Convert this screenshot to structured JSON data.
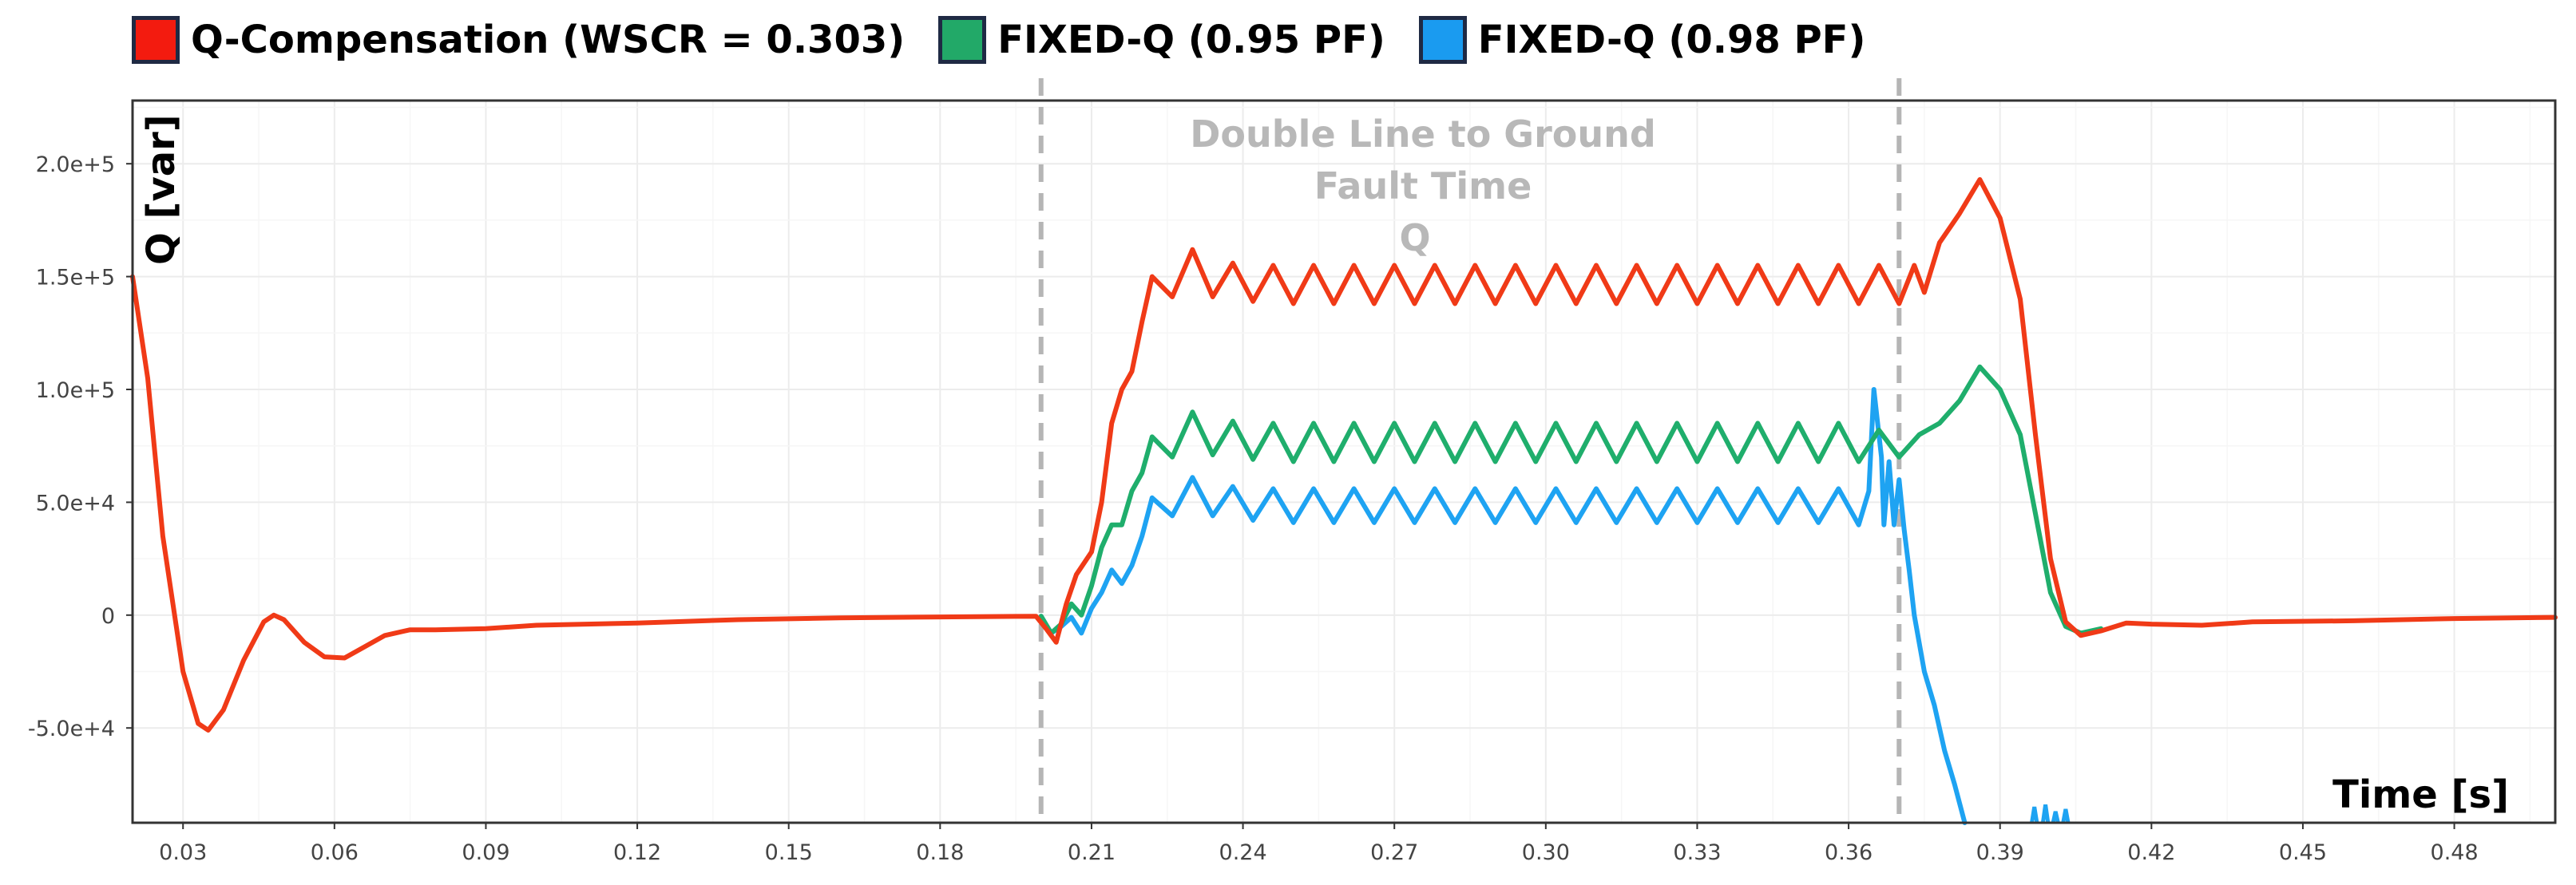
{
  "chart_data": {
    "type": "line",
    "title": "",
    "xlabel": "Time [s]",
    "ylabel": "Q [var]",
    "xlim": [
      0.02,
      0.5
    ],
    "ylim": [
      -92000,
      228000
    ],
    "grid": true,
    "legend_position": "top-left",
    "x_ticks": [
      0.03,
      0.06,
      0.09,
      0.12,
      0.15,
      0.18,
      0.21,
      0.24,
      0.27,
      0.3,
      0.33,
      0.36,
      0.39,
      0.42,
      0.45,
      0.48
    ],
    "x_tick_labels": [
      "0.03",
      "0.06",
      "0.09",
      "0.12",
      "0.15",
      "0.18",
      "0.21",
      "0.24",
      "0.27",
      "0.30",
      "0.33",
      "0.36",
      "0.39",
      "0.42",
      "0.45",
      "0.48"
    ],
    "y_ticks": [
      -50000,
      0,
      50000,
      100000,
      150000,
      200000
    ],
    "y_tick_labels": [
      "-5.0e+4",
      "0",
      "5.0e+4",
      "1.0e+5",
      "1.5e+5",
      "2.0e+5"
    ],
    "fault_lines": [
      0.2,
      0.37
    ],
    "annotation": [
      "Double Line to Ground",
      "Fault Time",
      "Q"
    ],
    "series": [
      {
        "name": "Q-Compensation (WSCR = 0.303)",
        "color": "#f03a17",
        "points": [
          [
            0.02,
            150000
          ],
          [
            0.023,
            105000
          ],
          [
            0.026,
            35000
          ],
          [
            0.03,
            -25000
          ],
          [
            0.033,
            -48000
          ],
          [
            0.035,
            -51000
          ],
          [
            0.038,
            -42000
          ],
          [
            0.042,
            -20000
          ],
          [
            0.046,
            -3000
          ],
          [
            0.048,
            0
          ],
          [
            0.05,
            -2000
          ],
          [
            0.054,
            -12000
          ],
          [
            0.058,
            -18500
          ],
          [
            0.062,
            -19000
          ],
          [
            0.066,
            -14000
          ],
          [
            0.07,
            -9000
          ],
          [
            0.075,
            -6500
          ],
          [
            0.08,
            -6500
          ],
          [
            0.09,
            -6000
          ],
          [
            0.1,
            -4500
          ],
          [
            0.12,
            -3500
          ],
          [
            0.14,
            -2000
          ],
          [
            0.16,
            -1200
          ],
          [
            0.18,
            -800
          ],
          [
            0.199,
            -500
          ],
          [
            0.201,
            -6000
          ],
          [
            0.203,
            -12000
          ],
          [
            0.205,
            5000
          ],
          [
            0.207,
            18000
          ],
          [
            0.21,
            28000
          ],
          [
            0.212,
            50000
          ],
          [
            0.214,
            85000
          ],
          [
            0.216,
            100000
          ],
          [
            0.218,
            108000
          ],
          [
            0.22,
            130000
          ],
          [
            0.222,
            150000
          ],
          [
            0.226,
            141000
          ],
          [
            0.23,
            162000
          ],
          [
            0.234,
            141000
          ],
          [
            0.238,
            156000
          ],
          [
            0.242,
            139000
          ],
          [
            0.246,
            155000
          ],
          [
            0.25,
            138000
          ],
          [
            0.254,
            155000
          ],
          [
            0.258,
            138000
          ],
          [
            0.262,
            155000
          ],
          [
            0.266,
            138000
          ],
          [
            0.27,
            155000
          ],
          [
            0.274,
            138000
          ],
          [
            0.278,
            155000
          ],
          [
            0.282,
            138000
          ],
          [
            0.286,
            155000
          ],
          [
            0.29,
            138000
          ],
          [
            0.294,
            155000
          ],
          [
            0.298,
            138000
          ],
          [
            0.302,
            155000
          ],
          [
            0.306,
            138000
          ],
          [
            0.31,
            155000
          ],
          [
            0.314,
            138000
          ],
          [
            0.318,
            155000
          ],
          [
            0.322,
            138000
          ],
          [
            0.326,
            155000
          ],
          [
            0.33,
            138000
          ],
          [
            0.334,
            155000
          ],
          [
            0.338,
            138000
          ],
          [
            0.342,
            155000
          ],
          [
            0.346,
            138000
          ],
          [
            0.35,
            155000
          ],
          [
            0.354,
            138000
          ],
          [
            0.358,
            155000
          ],
          [
            0.362,
            138000
          ],
          [
            0.366,
            155000
          ],
          [
            0.37,
            138000
          ],
          [
            0.373,
            155000
          ],
          [
            0.375,
            143000
          ],
          [
            0.378,
            165000
          ],
          [
            0.382,
            178000
          ],
          [
            0.386,
            193000
          ],
          [
            0.39,
            176000
          ],
          [
            0.394,
            140000
          ],
          [
            0.397,
            80000
          ],
          [
            0.4,
            25000
          ],
          [
            0.403,
            -3000
          ],
          [
            0.406,
            -9000
          ],
          [
            0.41,
            -7000
          ],
          [
            0.415,
            -3500
          ],
          [
            0.42,
            -4000
          ],
          [
            0.43,
            -4500
          ],
          [
            0.44,
            -3000
          ],
          [
            0.46,
            -2500
          ],
          [
            0.48,
            -1500
          ],
          [
            0.5,
            -1000
          ]
        ]
      },
      {
        "name": "FIXED-Q (0.95 PF)",
        "color": "#1fae6c",
        "points": [
          [
            0.2,
            -500
          ],
          [
            0.202,
            -8000
          ],
          [
            0.204,
            -4000
          ],
          [
            0.206,
            5000
          ],
          [
            0.208,
            0
          ],
          [
            0.21,
            13000
          ],
          [
            0.212,
            30000
          ],
          [
            0.214,
            40000
          ],
          [
            0.216,
            40000
          ],
          [
            0.218,
            55000
          ],
          [
            0.22,
            63000
          ],
          [
            0.222,
            79000
          ],
          [
            0.226,
            70000
          ],
          [
            0.23,
            90000
          ],
          [
            0.234,
            71000
          ],
          [
            0.238,
            86000
          ],
          [
            0.242,
            69000
          ],
          [
            0.246,
            85000
          ],
          [
            0.25,
            68000
          ],
          [
            0.254,
            85000
          ],
          [
            0.258,
            68000
          ],
          [
            0.262,
            85000
          ],
          [
            0.266,
            68000
          ],
          [
            0.27,
            85000
          ],
          [
            0.274,
            68000
          ],
          [
            0.278,
            85000
          ],
          [
            0.282,
            68000
          ],
          [
            0.286,
            85000
          ],
          [
            0.29,
            68000
          ],
          [
            0.294,
            85000
          ],
          [
            0.298,
            68000
          ],
          [
            0.302,
            85000
          ],
          [
            0.306,
            68000
          ],
          [
            0.31,
            85000
          ],
          [
            0.314,
            68000
          ],
          [
            0.318,
            85000
          ],
          [
            0.322,
            68000
          ],
          [
            0.326,
            85000
          ],
          [
            0.33,
            68000
          ],
          [
            0.334,
            85000
          ],
          [
            0.338,
            68000
          ],
          [
            0.342,
            85000
          ],
          [
            0.346,
            68000
          ],
          [
            0.35,
            85000
          ],
          [
            0.354,
            68000
          ],
          [
            0.358,
            85000
          ],
          [
            0.362,
            68000
          ],
          [
            0.366,
            82000
          ],
          [
            0.37,
            70000
          ],
          [
            0.374,
            80000
          ],
          [
            0.378,
            85000
          ],
          [
            0.382,
            95000
          ],
          [
            0.386,
            110000
          ],
          [
            0.39,
            100000
          ],
          [
            0.394,
            80000
          ],
          [
            0.397,
            45000
          ],
          [
            0.4,
            10000
          ],
          [
            0.403,
            -5000
          ],
          [
            0.406,
            -8000
          ],
          [
            0.41,
            -6000
          ]
        ]
      },
      {
        "name": "FIXED-Q (0.98 PF)",
        "color": "#1ea3f2",
        "points": [
          [
            0.2,
            -500
          ],
          [
            0.202,
            -8000
          ],
          [
            0.204,
            -5000
          ],
          [
            0.206,
            -1000
          ],
          [
            0.208,
            -8000
          ],
          [
            0.21,
            3000
          ],
          [
            0.212,
            10000
          ],
          [
            0.214,
            20000
          ],
          [
            0.216,
            14000
          ],
          [
            0.218,
            22000
          ],
          [
            0.22,
            35000
          ],
          [
            0.222,
            52000
          ],
          [
            0.226,
            44000
          ],
          [
            0.23,
            61000
          ],
          [
            0.234,
            44000
          ],
          [
            0.238,
            57000
          ],
          [
            0.242,
            42000
          ],
          [
            0.246,
            56000
          ],
          [
            0.25,
            41000
          ],
          [
            0.254,
            56000
          ],
          [
            0.258,
            41000
          ],
          [
            0.262,
            56000
          ],
          [
            0.266,
            41000
          ],
          [
            0.27,
            56000
          ],
          [
            0.274,
            41000
          ],
          [
            0.278,
            56000
          ],
          [
            0.282,
            41000
          ],
          [
            0.286,
            56000
          ],
          [
            0.29,
            41000
          ],
          [
            0.294,
            56000
          ],
          [
            0.298,
            41000
          ],
          [
            0.302,
            56000
          ],
          [
            0.306,
            41000
          ],
          [
            0.31,
            56000
          ],
          [
            0.314,
            41000
          ],
          [
            0.318,
            56000
          ],
          [
            0.322,
            41000
          ],
          [
            0.326,
            56000
          ],
          [
            0.33,
            41000
          ],
          [
            0.334,
            56000
          ],
          [
            0.338,
            41000
          ],
          [
            0.342,
            56000
          ],
          [
            0.346,
            41000
          ],
          [
            0.35,
            56000
          ],
          [
            0.354,
            41000
          ],
          [
            0.358,
            56000
          ],
          [
            0.362,
            40000
          ],
          [
            0.364,
            55000
          ],
          [
            0.365,
            100000
          ],
          [
            0.3665,
            70000
          ],
          [
            0.367,
            40000
          ],
          [
            0.368,
            68000
          ],
          [
            0.369,
            40000
          ],
          [
            0.37,
            60000
          ],
          [
            0.371,
            38000
          ],
          [
            0.372,
            20000
          ],
          [
            0.373,
            0
          ],
          [
            0.375,
            -25000
          ],
          [
            0.377,
            -40000
          ],
          [
            0.379,
            -60000
          ],
          [
            0.381,
            -75000
          ],
          [
            0.383,
            -92000
          ]
        ]
      }
    ],
    "extra_segments": [
      {
        "color": "#1ea3f2",
        "points": [
          [
            0.3963,
            -92000
          ],
          [
            0.3968,
            -85000
          ],
          [
            0.3973,
            -92000
          ]
        ]
      },
      {
        "color": "#1ea3f2",
        "points": [
          [
            0.3985,
            -92000
          ],
          [
            0.399,
            -84000
          ],
          [
            0.3995,
            -92000
          ]
        ]
      },
      {
        "color": "#1ea3f2",
        "points": [
          [
            0.4005,
            -92000
          ],
          [
            0.401,
            -87000
          ],
          [
            0.4015,
            -92000
          ]
        ]
      },
      {
        "color": "#1ea3f2",
        "points": [
          [
            0.4025,
            -92000
          ],
          [
            0.403,
            -86000
          ],
          [
            0.4035,
            -92000
          ]
        ]
      }
    ]
  }
}
